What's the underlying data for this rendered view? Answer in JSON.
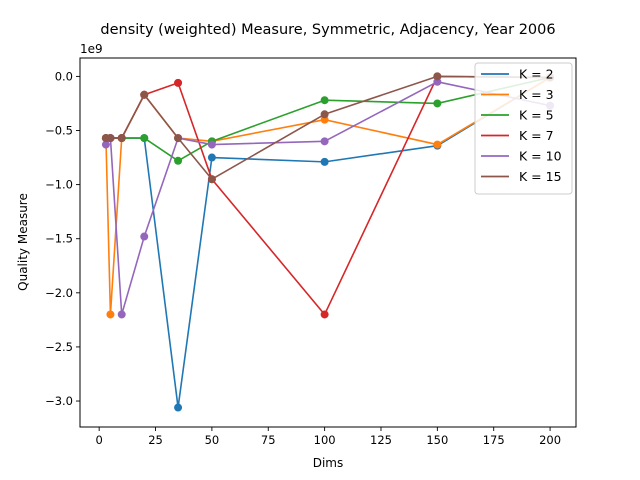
{
  "chart_data": {
    "type": "line",
    "title": "density (weighted) Measure, Symmetric, Adjacency, Year 2006",
    "xlabel": "Dims",
    "ylabel": "Quality Measure",
    "offset_label": "1e9",
    "xlim": [
      -8.5,
      211.5
    ],
    "ylim": [
      -3.24,
      0.17
    ],
    "xticks": [
      0,
      25,
      50,
      75,
      100,
      125,
      150,
      175,
      200
    ],
    "yticks": [
      0.0,
      -0.5,
      -1.0,
      -1.5,
      -2.0,
      -2.5,
      -3.0
    ],
    "ytick_labels": [
      "0.0",
      "−0.5",
      "−1.0",
      "−1.5",
      "−2.0",
      "−2.5",
      "−3.0"
    ],
    "legend_position": "top-right",
    "grid": false,
    "series": [
      {
        "name": "K = 2",
        "color": "#1f77b4",
        "x": [
          3,
          5,
          10,
          20,
          35,
          50,
          100,
          150,
          200
        ],
        "y": [
          -0.57,
          -0.57,
          -0.57,
          -0.57,
          -3.06,
          -0.75,
          -0.79,
          -0.64,
          -0.01
        ]
      },
      {
        "name": "K = 3",
        "color": "#ff7f0e",
        "x": [
          3,
          5,
          10,
          20,
          35,
          50,
          100,
          150,
          200
        ],
        "y": [
          -0.57,
          -2.2,
          -0.57,
          -0.17,
          -0.57,
          -0.6,
          -0.4,
          -0.63,
          -0.01
        ]
      },
      {
        "name": "K = 5",
        "color": "#2ca02c",
        "x": [
          3,
          5,
          10,
          20,
          35,
          50,
          100,
          150,
          200
        ],
        "y": [
          -0.57,
          -0.57,
          -0.57,
          -0.57,
          -0.78,
          -0.6,
          -0.22,
          -0.25,
          -0.01
        ]
      },
      {
        "name": "K = 7",
        "color": "#d62728",
        "x": [
          3,
          5,
          10,
          20,
          35,
          50,
          100,
          150,
          200
        ],
        "y": [
          -0.57,
          -0.57,
          -0.57,
          -0.17,
          -0.06,
          -0.95,
          -2.2,
          0.0,
          -0.01
        ]
      },
      {
        "name": "K = 10",
        "color": "#9467bd",
        "x": [
          3,
          5,
          10,
          20,
          35,
          50,
          100,
          150,
          200
        ],
        "y": [
          -0.63,
          -0.57,
          -2.2,
          -1.48,
          -0.57,
          -0.63,
          -0.6,
          -0.05,
          -0.27
        ]
      },
      {
        "name": "K = 15",
        "color": "#8c564b",
        "x": [
          3,
          5,
          10,
          20,
          35,
          50,
          100,
          150,
          200
        ],
        "y": [
          -0.57,
          -0.57,
          -0.57,
          -0.17,
          -0.57,
          -0.95,
          -0.35,
          0.0,
          -0.01
        ]
      }
    ]
  }
}
